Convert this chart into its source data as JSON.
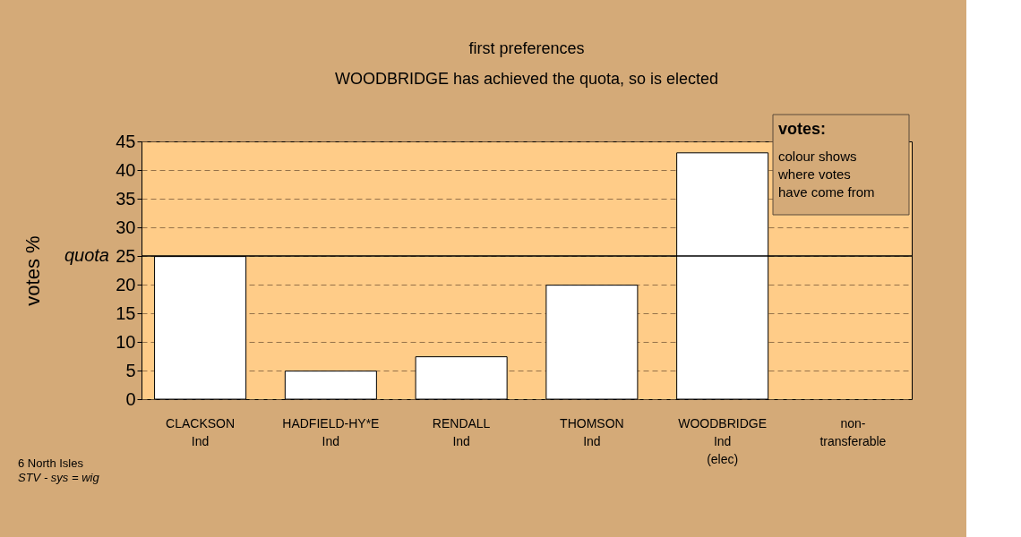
{
  "chart_data": {
    "type": "bar",
    "title": "first preferences",
    "subtitle": "WOODBRIDGE has achieved the quota, so is elected",
    "ylabel": "votes %",
    "categories": [
      "CLACKSON\nInd",
      "HADFIELD-HY*E\nInd",
      "RENDALL\nInd",
      "THOMSON\nInd",
      "WOODBRIDGE\nInd\n(elec)",
      "non-\ntransferable"
    ],
    "values": [
      24.9,
      4.9,
      7.4,
      19.9,
      43.0,
      null
    ],
    "color": "#ffffff",
    "ylim": [
      0,
      45
    ],
    "yticks": [
      0,
      5,
      10,
      15,
      20,
      25,
      30,
      35,
      40,
      45
    ],
    "grid": "y",
    "ref_lines": [
      {
        "axis": "y",
        "value": 25,
        "label": "quota",
        "color": "#000000",
        "line_style": "solid"
      }
    ],
    "annotations": [
      "votes:",
      "colour shows\nwhere votes\nhave come from",
      "6 North Isles",
      "STV - sys = wig"
    ]
  }
}
